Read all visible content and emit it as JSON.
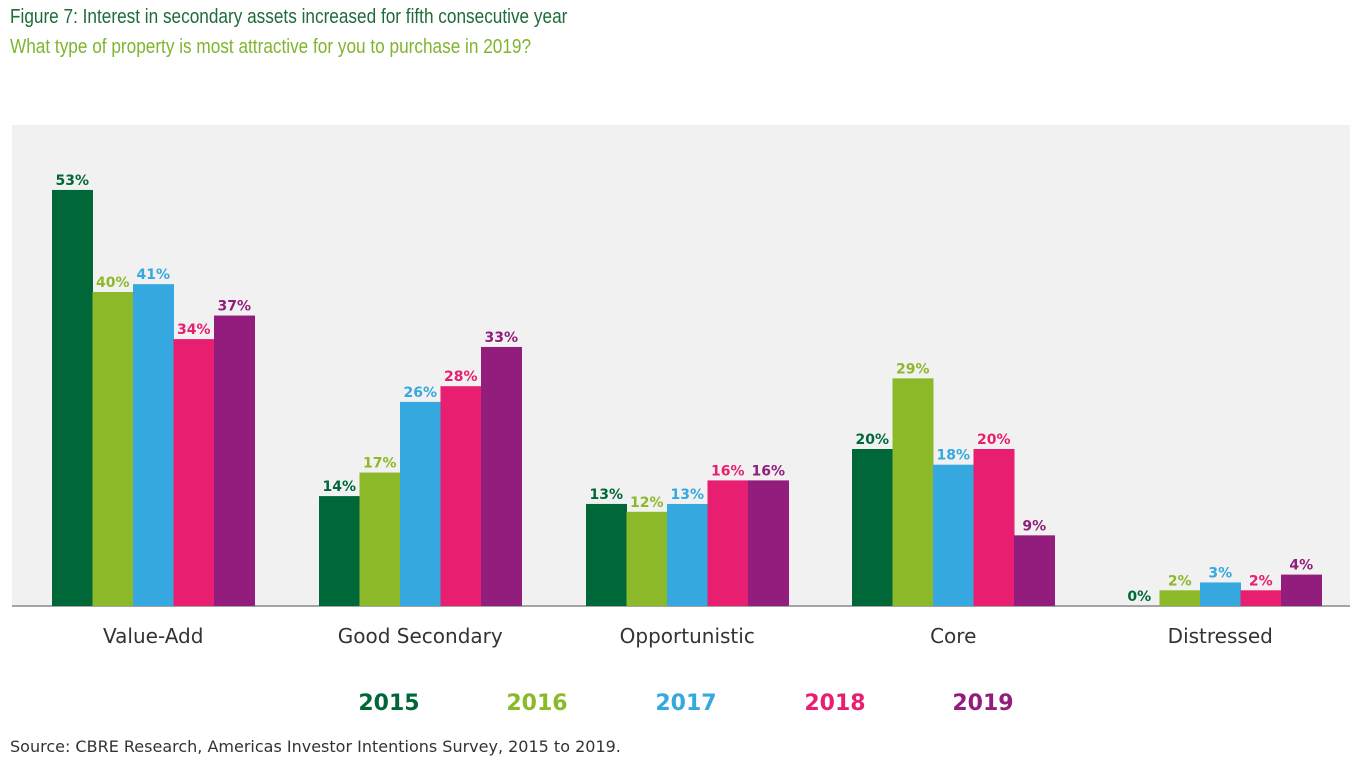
{
  "header": {
    "title": "Figure 7: Interest in secondary assets increased for fifth consecutive year",
    "subtitle": "What type of property is most attractive for you to purchase in 2019?"
  },
  "footer": {
    "source": "Source: CBRE Research, Americas Investor Intentions Survey, 2015 to 2019."
  },
  "colors": {
    "background": "#f1f1f1",
    "2015": "#006838",
    "2016": "#8cb92a",
    "2017": "#35a8e0",
    "2018": "#e81e70",
    "2019": "#921d7c",
    "title": "#1f6b3a",
    "subtitle": "#7fb52e"
  },
  "chart_data": {
    "type": "bar",
    "title": "Figure 7: Interest in secondary assets increased for fifth consecutive year",
    "subtitle": "What type of property is most attractive for you to purchase in 2019?",
    "xlabel": "",
    "ylabel": "",
    "ylim": [
      0,
      55
    ],
    "grid": false,
    "legend_position": "bottom-center",
    "categories": [
      "Value-Add",
      "Good Secondary",
      "Opportunistic",
      "Core",
      "Distressed"
    ],
    "series": [
      {
        "name": "2015",
        "values": [
          53,
          14,
          13,
          20,
          0
        ],
        "labels": [
          "53%",
          "14%",
          "13%",
          "20%",
          "0%"
        ]
      },
      {
        "name": "2016",
        "values": [
          40,
          17,
          12,
          29,
          2
        ],
        "labels": [
          "40%",
          "17%",
          "12%",
          "29%",
          "2%"
        ]
      },
      {
        "name": "2017",
        "values": [
          41,
          26,
          13,
          18,
          3
        ],
        "labels": [
          "41%",
          "26%",
          "13%",
          "18%",
          "3%"
        ]
      },
      {
        "name": "2018",
        "values": [
          34,
          28,
          16,
          20,
          2
        ],
        "labels": [
          "34%",
          "28%",
          "16%",
          "20%",
          "2%"
        ]
      },
      {
        "name": "2019",
        "values": [
          37,
          33,
          16,
          9,
          4
        ],
        "labels": [
          "37%",
          "33%",
          "16%",
          "9%",
          "4%"
        ]
      }
    ]
  }
}
